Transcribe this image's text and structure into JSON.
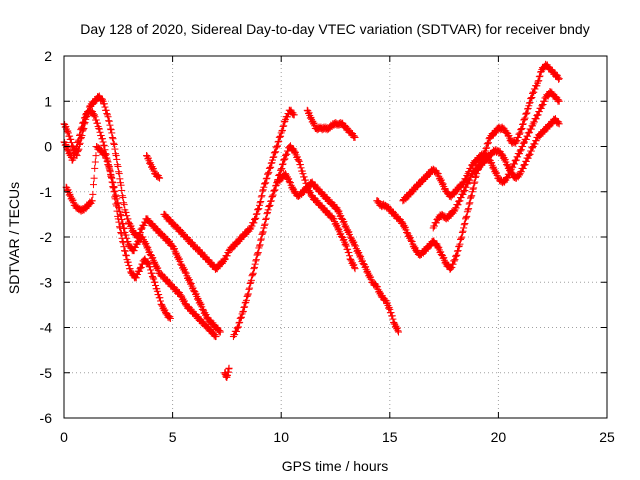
{
  "chart_data": {
    "type": "scatter",
    "title": "Day 128 of 2020, Sidereal Day-to-day VTEC variation (SDTVAR) for receiver bndy",
    "xlabel": "GPS time / hours",
    "ylabel": "SDTVAR / TECUs",
    "xlim": [
      0,
      25
    ],
    "ylim": [
      -6,
      2
    ],
    "xticks": [
      0,
      5,
      10,
      15,
      20,
      25
    ],
    "yticks": [
      -6,
      -5,
      -4,
      -3,
      -2,
      -1,
      0,
      1,
      2
    ],
    "grid": true,
    "marker": "+",
    "colors": {
      "series": "#ff0000",
      "grid": "#a0a0a0",
      "axis": "#000000"
    },
    "series": [
      {
        "name": "",
        "x": [
          0.0,
          0.2,
          0.4,
          0.6,
          0.8,
          1.0,
          1.2,
          1.4,
          1.6,
          1.8,
          2.0,
          2.2,
          2.4,
          2.6,
          2.8,
          3.0,
          3.2,
          3.4,
          3.6,
          3.8,
          4.0,
          4.2,
          4.4,
          4.6,
          4.8,
          5.0,
          5.2,
          5.4,
          5.6,
          5.8,
          6.0,
          6.2,
          6.4,
          6.6,
          6.8,
          7.0,
          7.2
        ],
        "y": [
          0.5,
          0.3,
          0.0,
          -0.2,
          0.2,
          0.6,
          0.9,
          1.0,
          1.1,
          1.0,
          0.7,
          0.3,
          -0.2,
          -0.8,
          -1.4,
          -1.7,
          -1.9,
          -2.0,
          -1.8,
          -1.6,
          -1.7,
          -1.8,
          -1.9,
          -2.0,
          -2.1,
          -2.2,
          -2.4,
          -2.6,
          -2.8,
          -3.0,
          -3.2,
          -3.4,
          -3.6,
          -3.8,
          -3.9,
          -4.0,
          -4.1
        ]
      },
      {
        "name": "",
        "x": [
          0.0,
          0.2,
          0.4,
          0.6,
          0.8,
          1.0,
          1.2,
          1.4,
          1.6,
          1.8,
          2.0,
          2.2,
          2.4,
          2.6,
          2.8,
          3.0,
          3.2,
          3.4,
          3.6,
          3.8,
          4.0,
          4.2,
          4.4,
          4.6,
          4.8,
          5.0,
          5.2,
          5.4,
          5.6,
          5.8,
          6.0,
          6.2,
          6.4,
          6.6,
          6.8,
          7.0
        ],
        "y": [
          0.1,
          -0.1,
          -0.3,
          0.0,
          0.4,
          0.7,
          0.8,
          0.7,
          0.4,
          0.1,
          -0.3,
          -0.7,
          -1.1,
          -1.5,
          -1.9,
          -2.2,
          -2.3,
          -2.1,
          -2.0,
          -2.2,
          -2.4,
          -2.6,
          -2.8,
          -2.9,
          -3.0,
          -3.1,
          -3.2,
          -3.3,
          -3.5,
          -3.6,
          -3.7,
          -3.8,
          -3.9,
          -4.0,
          -4.1,
          -4.2
        ]
      },
      {
        "name": "",
        "x": [
          0.1,
          0.3,
          0.5,
          0.7,
          0.9,
          1.1,
          1.3,
          1.5,
          1.7,
          1.9,
          2.1,
          2.3,
          2.5,
          2.7,
          2.9,
          3.1,
          3.3,
          3.5,
          3.7,
          3.9,
          4.1,
          4.3,
          4.5,
          4.7,
          4.9
        ],
        "y": [
          -0.9,
          -1.1,
          -1.3,
          -1.4,
          -1.4,
          -1.3,
          -1.2,
          0.0,
          -0.1,
          -0.2,
          -0.5,
          -1.0,
          -1.6,
          -2.1,
          -2.5,
          -2.8,
          -2.9,
          -2.7,
          -2.5,
          -2.6,
          -2.9,
          -3.2,
          -3.5,
          -3.7,
          -3.8
        ]
      },
      {
        "name": "",
        "x": [
          4.6,
          4.8,
          5.0,
          5.2,
          5.4,
          5.6,
          5.8,
          6.0,
          6.2,
          6.4,
          6.6,
          6.8,
          7.0,
          7.2,
          7.4,
          7.6,
          7.8,
          8.0,
          8.2,
          8.4,
          8.6,
          8.8,
          9.0,
          9.2,
          9.4,
          9.6,
          9.8,
          10.0,
          10.2,
          10.4,
          10.6
        ],
        "y": [
          -1.5,
          -1.6,
          -1.7,
          -1.8,
          -1.9,
          -2.0,
          -2.1,
          -2.2,
          -2.3,
          -2.4,
          -2.5,
          -2.6,
          -2.7,
          -2.6,
          -2.5,
          -2.3,
          -2.2,
          -2.1,
          -2.0,
          -1.9,
          -1.8,
          -1.6,
          -1.3,
          -0.9,
          -0.6,
          -0.3,
          0.0,
          0.3,
          0.6,
          0.8,
          0.7
        ]
      },
      {
        "name": "",
        "x": [
          7.8,
          8.0,
          8.2,
          8.4,
          8.6,
          8.8,
          9.0,
          9.2,
          9.4,
          9.6,
          9.8,
          10.0,
          10.2,
          10.4,
          10.6,
          10.8,
          11.0,
          11.2,
          11.4,
          11.6,
          11.8,
          12.0,
          12.2,
          12.4,
          12.6,
          12.8,
          13.0,
          13.2,
          13.4
        ],
        "y": [
          -4.2,
          -4.0,
          -3.7,
          -3.4,
          -3.0,
          -2.6,
          -2.2,
          -1.8,
          -1.4,
          -1.1,
          -0.8,
          -0.5,
          -0.2,
          0.0,
          -0.1,
          -0.3,
          -0.6,
          -0.9,
          -1.1,
          -1.2,
          -1.3,
          -1.4,
          -1.5,
          -1.6,
          -1.8,
          -2.0,
          -2.2,
          -2.5,
          -2.7
        ]
      },
      {
        "name": "",
        "x": [
          9.8,
          10.0,
          10.2,
          10.4,
          10.6,
          10.8,
          11.0,
          11.2,
          11.4,
          11.6,
          11.8,
          12.0,
          12.2,
          12.4,
          12.6,
          12.8,
          13.0,
          13.2,
          13.4,
          13.6,
          13.8,
          14.0,
          14.2,
          14.4,
          14.6,
          14.8,
          15.0,
          15.2,
          15.4
        ],
        "y": [
          -0.8,
          -0.7,
          -0.6,
          -0.8,
          -1.0,
          -1.1,
          -1.0,
          -0.9,
          -0.8,
          -0.9,
          -1.0,
          -1.1,
          -1.2,
          -1.3,
          -1.4,
          -1.6,
          -1.8,
          -2.0,
          -2.2,
          -2.4,
          -2.6,
          -2.8,
          -3.0,
          -3.1,
          -3.3,
          -3.4,
          -3.6,
          -3.9,
          -4.1
        ]
      },
      {
        "name": "",
        "x": [
          11.2,
          11.4,
          11.6,
          11.8,
          12.0,
          12.2,
          12.4,
          12.6,
          12.8,
          13.0,
          13.2,
          13.4
        ],
        "y": [
          0.8,
          0.6,
          0.4,
          0.4,
          0.4,
          0.4,
          0.5,
          0.5,
          0.5,
          0.4,
          0.3,
          0.2
        ]
      },
      {
        "name": "",
        "x": [
          14.4,
          14.6,
          14.8,
          15.0,
          15.2,
          15.4,
          15.6,
          15.8,
          16.0,
          16.2,
          16.4,
          16.6,
          16.8,
          17.0,
          17.2,
          17.4,
          17.6,
          17.8,
          18.0,
          18.2,
          18.4,
          18.6,
          18.8,
          19.0,
          19.2,
          19.4,
          19.6,
          19.8,
          20.0,
          20.2,
          20.4,
          20.6,
          20.8,
          21.0,
          21.2,
          21.4,
          21.6,
          21.8,
          22.0,
          22.2,
          22.4,
          22.6,
          22.8
        ],
        "y": [
          -1.2,
          -1.3,
          -1.3,
          -1.4,
          -1.5,
          -1.6,
          -1.7,
          -1.9,
          -2.1,
          -2.3,
          -2.4,
          -2.3,
          -2.2,
          -2.1,
          -2.2,
          -2.4,
          -2.6,
          -2.7,
          -2.5,
          -2.2,
          -1.8,
          -1.4,
          -1.0,
          -0.6,
          -0.3,
          -0.1,
          0.2,
          0.3,
          0.4,
          0.4,
          0.3,
          0.1,
          0.1,
          0.3,
          0.6,
          0.9,
          1.2,
          1.4,
          1.7,
          1.8,
          1.7,
          1.6,
          1.5
        ]
      },
      {
        "name": "",
        "x": [
          15.6,
          15.8,
          16.0,
          16.2,
          16.4,
          16.6,
          16.8,
          17.0,
          17.2,
          17.4,
          17.6,
          17.8,
          18.0,
          18.2,
          18.4,
          18.6,
          18.8,
          19.0,
          19.2,
          19.4,
          19.6,
          19.8,
          20.0,
          20.2,
          20.4,
          20.6,
          20.8,
          21.0,
          21.2,
          21.4,
          21.6,
          21.8,
          22.0,
          22.2,
          22.4,
          22.6,
          22.8
        ],
        "y": [
          -1.2,
          -1.1,
          -1.0,
          -0.9,
          -0.8,
          -0.7,
          -0.6,
          -0.5,
          -0.6,
          -0.8,
          -1.0,
          -1.1,
          -1.0,
          -0.9,
          -0.8,
          -0.6,
          -0.4,
          -0.3,
          -0.2,
          -0.2,
          -0.3,
          -0.5,
          -0.7,
          -0.8,
          -0.7,
          -0.5,
          -0.3,
          -0.1,
          0.1,
          0.3,
          0.5,
          0.7,
          0.9,
          1.1,
          1.2,
          1.1,
          1.0
        ]
      },
      {
        "name": "",
        "x": [
          17.0,
          17.2,
          17.4,
          17.6,
          17.8,
          18.0,
          18.2,
          18.4,
          18.6,
          18.8,
          19.0,
          19.2,
          19.4,
          19.6,
          19.8,
          20.0,
          20.2,
          20.4,
          20.6,
          20.8,
          21.0,
          21.2,
          21.4,
          21.6,
          21.8,
          22.0,
          22.2,
          22.4,
          22.6,
          22.8
        ],
        "y": [
          -1.8,
          -1.6,
          -1.5,
          -1.6,
          -1.5,
          -1.4,
          -1.2,
          -1.0,
          -0.8,
          -0.6,
          -0.5,
          -0.4,
          -0.3,
          -0.2,
          -0.1,
          -0.1,
          -0.2,
          -0.4,
          -0.6,
          -0.7,
          -0.6,
          -0.4,
          -0.2,
          0.0,
          0.2,
          0.3,
          0.4,
          0.5,
          0.6,
          0.5
        ]
      },
      {
        "name": "",
        "x": [
          3.8,
          4.0,
          4.2,
          4.4,
          7.4,
          7.5,
          7.6
        ],
        "y": [
          -0.2,
          -0.4,
          -0.6,
          -0.7,
          -5.0,
          -5.1,
          -4.9
        ]
      }
    ]
  }
}
